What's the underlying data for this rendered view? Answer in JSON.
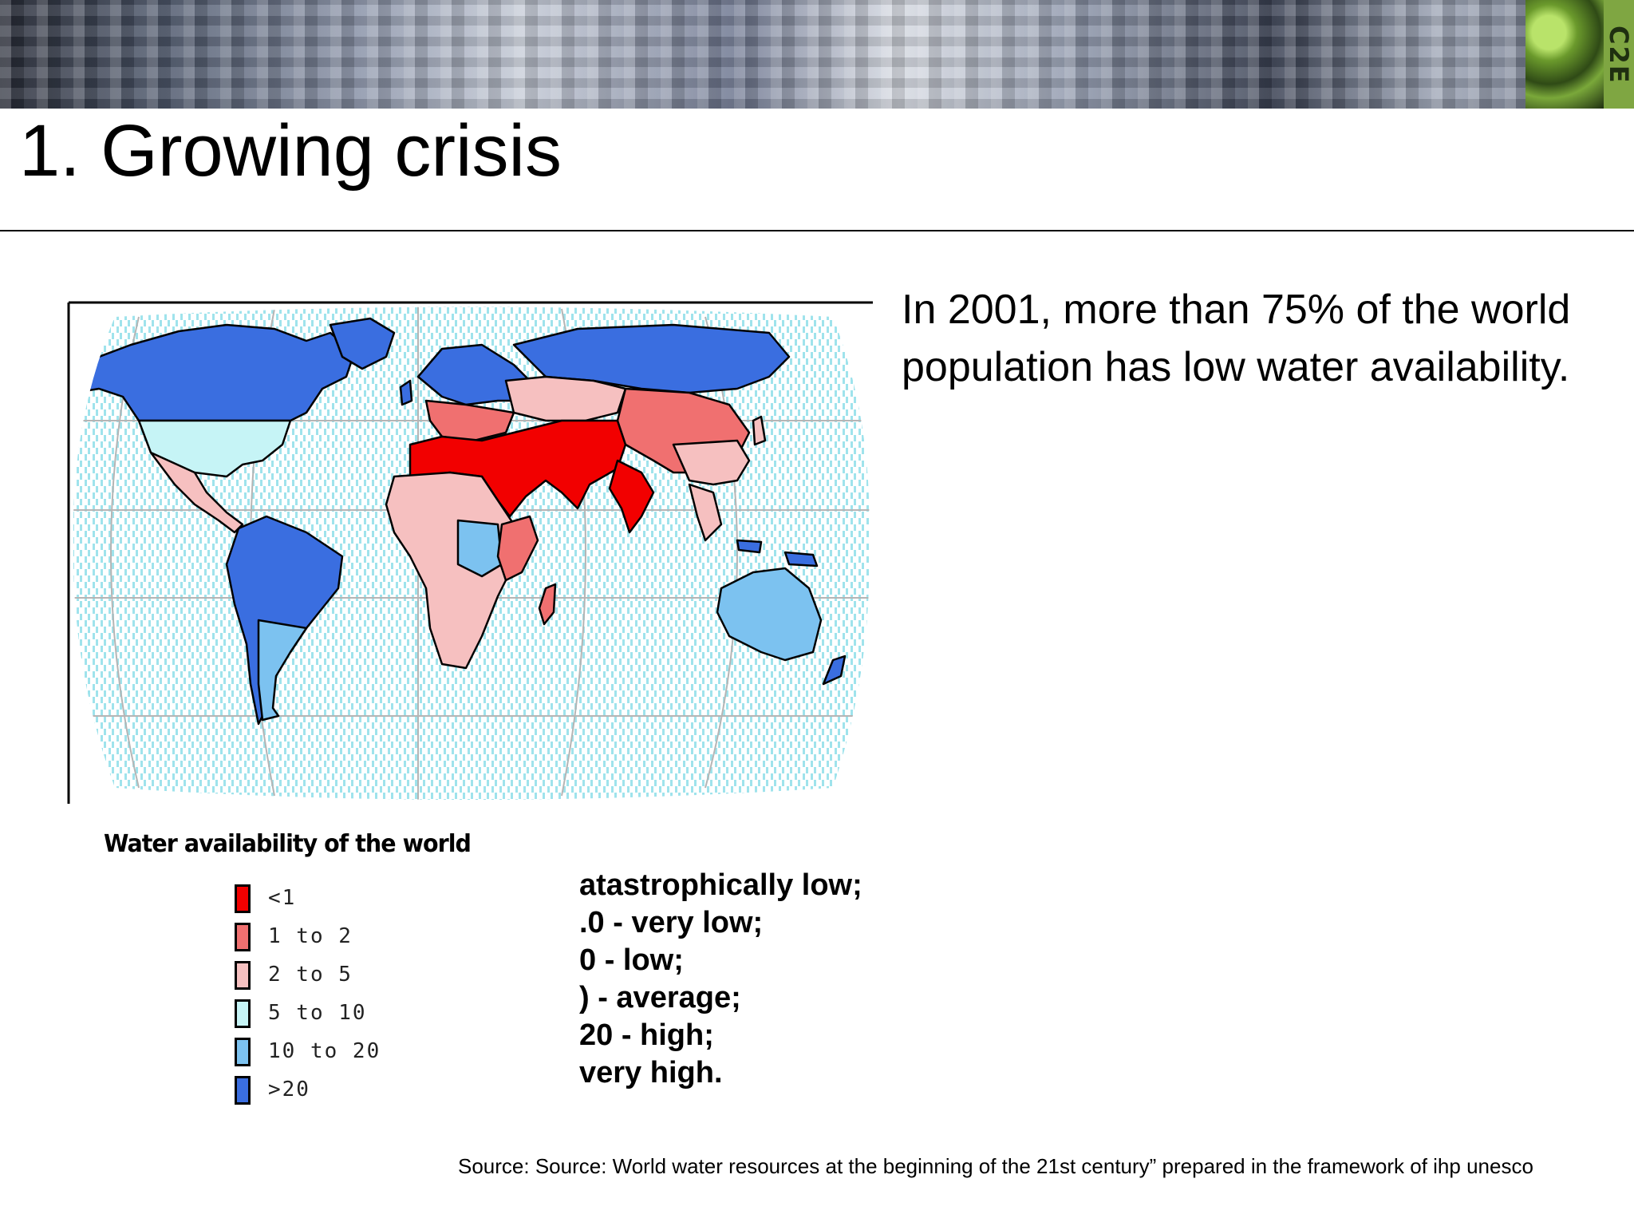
{
  "banner": {
    "logo_text": "C2E",
    "photo_icon": "satellite-clouds-photo",
    "leaf_icon": "green-leaf-photo"
  },
  "slide": {
    "title": "1. Growing crisis",
    "bullet": "In 2001, more than 75% of the world population has low water availability.",
    "source": "Source: Source: World water resources at the beginning of the 21st century” prepared in the framework of ihp unesco"
  },
  "map": {
    "icon": "world-map",
    "legend_title": "Water availability of the world",
    "legend": [
      {
        "value": "<1",
        "color": "#f20000",
        "description": "atastrophically low;"
      },
      {
        "value": "1    to 2",
        "color": "#f07070",
        "description": ".0 - very low;"
      },
      {
        "value": "2    to 5",
        "color": "#f6c0c0",
        "description": "0 - low;"
      },
      {
        "value": "5    to 10",
        "color": "#c6f4f6",
        "description": ") - average;"
      },
      {
        "value": "10   to 20",
        "color": "#7cc2f0",
        "description": "20 - high;"
      },
      {
        "value": ">20",
        "color": "#3a6ee0",
        "description": " very high."
      }
    ]
  }
}
